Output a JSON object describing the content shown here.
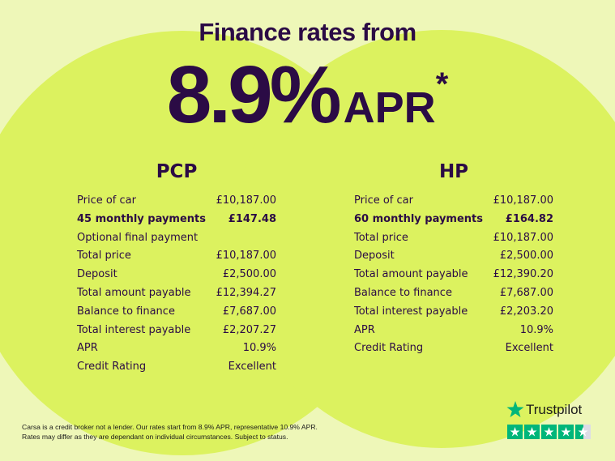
{
  "header": {
    "title": "Finance rates from",
    "rate": "8.9%",
    "apr": "APR",
    "asterisk": "*"
  },
  "plans": [
    {
      "title": "PCP",
      "rows": [
        [
          "Price of car",
          "£10,187.00"
        ],
        [
          "45 monthly payments",
          "£147.48"
        ],
        [
          "Optional final payment"
        ],
        [
          "Total price",
          "£10,187.00"
        ],
        [
          "Deposit",
          "£2,500.00"
        ],
        [
          "Total amount payable",
          "£12,394.27"
        ],
        [
          "Balance to finance",
          "£7,687.00"
        ],
        [
          "Total interest payable",
          "£2,207.27"
        ],
        [
          "APR",
          "10.9%"
        ],
        [
          "Credit Rating",
          "Excellent"
        ]
      ]
    },
    {
      "title": "HP",
      "rows": [
        [
          "Price of car",
          "£10,187.00"
        ],
        [
          "60 monthly payments",
          "£164.82"
        ],
        [
          "Total price",
          "£10,187.00"
        ],
        [
          "Deposit",
          "£2,500.00"
        ],
        [
          "Total amount payable",
          "£12,390.20"
        ],
        [
          "Balance to finance",
          "£7,687.00"
        ],
        [
          "Total interest payable",
          "£2,203.20"
        ],
        [
          "APR",
          "10.9%"
        ],
        [
          "Credit Rating",
          "Excellent"
        ]
      ]
    }
  ],
  "footer": {
    "lines": [
      "Carsa is a credit broker not a lender. Our rates start from 8.9% APR, representative 10.9% APR.",
      "Rates may differ as they are dependant on individual circumstances. Subject to status."
    ]
  },
  "trustpilot": {
    "name": "Trustpilot"
  }
}
